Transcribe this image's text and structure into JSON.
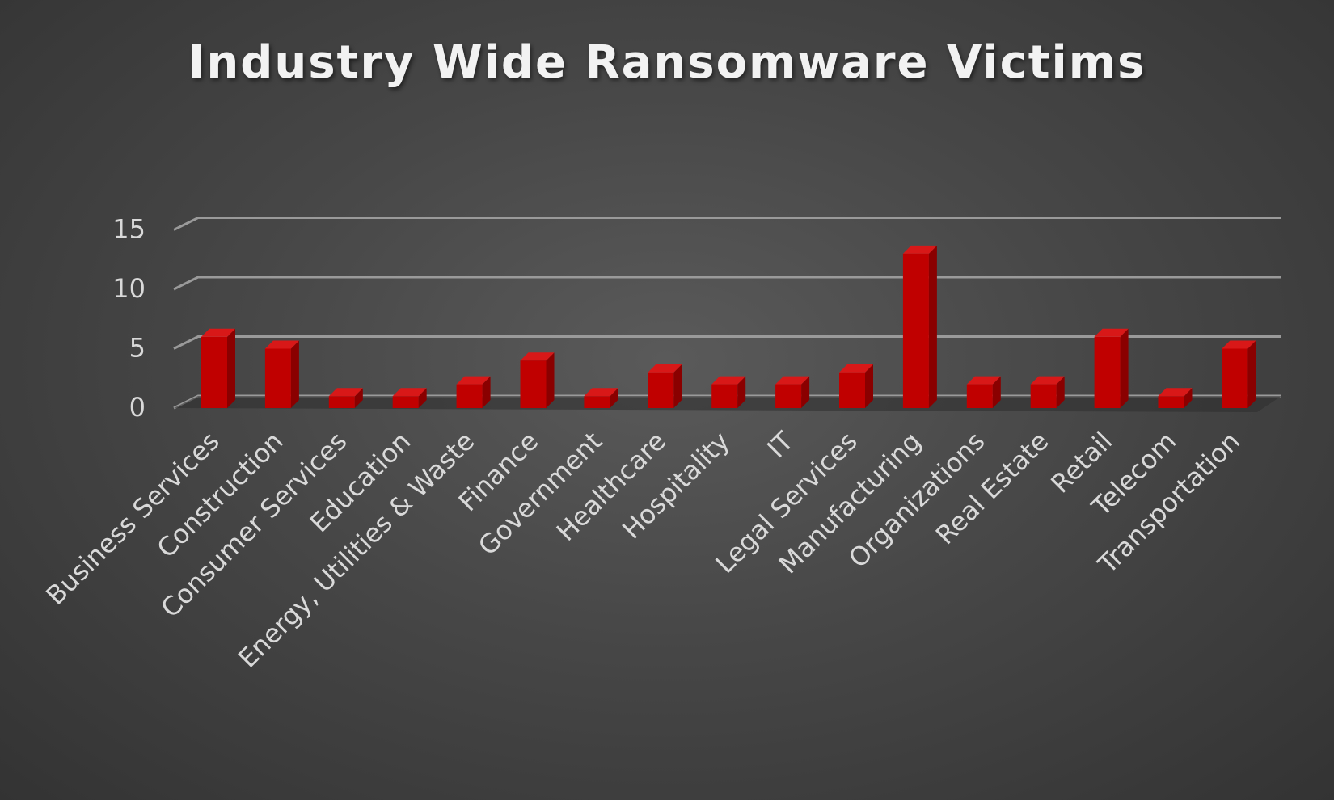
{
  "chart_data": {
    "type": "bar",
    "title": "Industry Wide Ransomware Victims",
    "xlabel": "",
    "ylabel": "",
    "categories": [
      "Business Services",
      "Construction",
      "Consumer Services",
      "Education",
      "Energy, Utilities & Waste",
      "Finance",
      "Government",
      "Healthcare",
      "Hospitality",
      "IT",
      "Legal Services",
      "Manufacturing",
      "Organizations",
      "Real Estate",
      "Retail",
      "Telecom",
      "Transportation"
    ],
    "values": [
      6,
      5,
      1,
      1,
      2,
      4,
      1,
      3,
      2,
      2,
      3,
      13,
      2,
      2,
      6,
      1,
      5
    ],
    "ylim": [
      0,
      15
    ],
    "yticks": [
      "0",
      "5",
      "10",
      "15"
    ],
    "grid": true,
    "legend": "none",
    "bar_style": "3d-column",
    "colors": {
      "bar_front": "#c00000",
      "bar_side": "#8a0000",
      "bar_top": "#d81818",
      "gridline": "#9a9a9a",
      "text": "#d9d9d9"
    }
  }
}
